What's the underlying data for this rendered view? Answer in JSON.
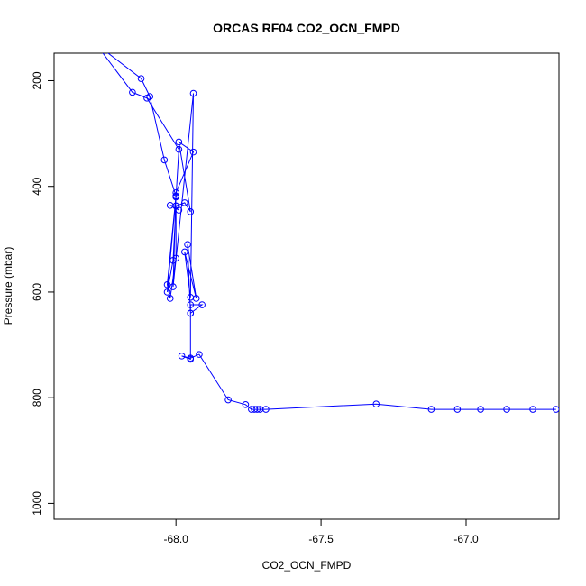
{
  "chart_data": {
    "type": "line",
    "title": "ORCAS RF04 CO2_OCN_FMPD",
    "xlabel": "CO2_OCN_FMPD",
    "ylabel": "Pressure (mbar)",
    "xlim": [
      -68.42,
      -66.68
    ],
    "ylim": [
      1030,
      148
    ],
    "y_reversed": true,
    "x_ticks": [
      -68.0,
      -67.5,
      -67.0
    ],
    "x_tick_labels": [
      "-68.0",
      "-67.5",
      "-67.0"
    ],
    "y_ticks": [
      200,
      400,
      600,
      800,
      1000
    ],
    "y_tick_labels": [
      "200",
      "400",
      "600",
      "800",
      "1000"
    ],
    "grid": false,
    "line_color": "#0000ff",
    "marker": "open-circle",
    "series": [
      {
        "x": [
          -68.29,
          -68.15,
          -68.1,
          -67.99,
          -68.0,
          -68.03,
          -68.01,
          -68.0,
          -67.97,
          -67.95,
          -67.99,
          -67.94,
          -68.0,
          -68.01,
          -67.94,
          -67.95,
          -67.97,
          -67.93,
          -67.96,
          -67.95,
          -67.95,
          -67.91,
          -67.95,
          -67.95,
          -67.98,
          -67.95,
          -67.92,
          -67.82,
          -67.76,
          -67.74,
          -67.73,
          -67.72,
          -67.71,
          -67.69,
          -67.31,
          -67.12,
          -67.03,
          -66.95,
          -66.86,
          -66.77,
          -66.69
        ],
        "y": [
          120,
          222,
          233,
          330,
          420,
          600,
          540,
          437,
          431,
          448,
          316,
          335,
          412,
          590,
          224,
          610,
          524,
          612,
          510,
          640,
          624,
          624,
          640,
          727,
          721,
          725,
          718,
          804,
          813,
          822,
          822,
          822,
          822,
          822,
          812,
          822,
          822,
          822,
          822,
          822,
          822
        ]
      },
      {
        "x": [
          -68.3,
          -68.12,
          -68.09,
          -68.04,
          -68.0,
          -68.03,
          -68.02,
          -68.0,
          -68.0,
          -68.02,
          -67.99
        ],
        "y": [
          120,
          196,
          230,
          350,
          418,
          586,
          612,
          536,
          437,
          436,
          445
        ]
      }
    ]
  }
}
